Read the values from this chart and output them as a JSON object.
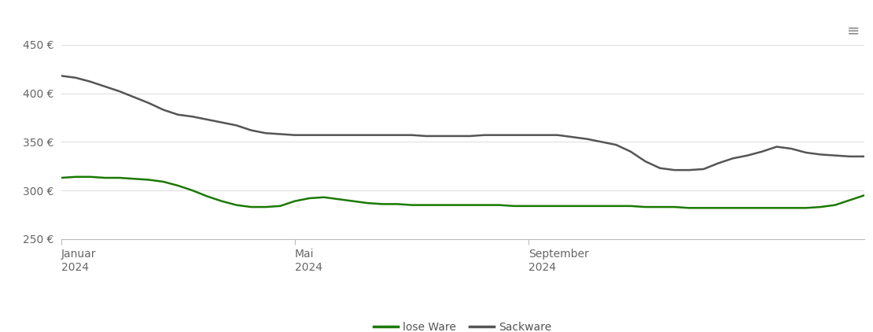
{
  "ylim": [
    250,
    455
  ],
  "yticks": [
    250,
    300,
    350,
    400,
    450
  ],
  "ytick_labels": [
    "250 €",
    "300 €",
    "350 €",
    "400 €",
    "450 €"
  ],
  "background_color": "#ffffff",
  "grid_color": "#dddddd",
  "lose_ware_color": "#1a7a00",
  "sackware_color": "#555555",
  "legend_labels": [
    "lose Ware",
    "Sackware"
  ],
  "lose_ware": [
    313,
    314,
    314,
    313,
    313,
    312,
    311,
    309,
    305,
    300,
    294,
    289,
    285,
    283,
    283,
    284,
    289,
    292,
    293,
    291,
    289,
    287,
    286,
    286,
    285,
    285,
    285,
    285,
    285,
    285,
    285,
    284,
    284,
    284,
    284,
    284,
    284,
    284,
    284,
    284,
    283,
    283,
    283,
    282,
    282,
    282,
    282,
    282,
    282,
    282,
    282,
    282,
    283,
    285,
    290,
    295
  ],
  "sackware": [
    418,
    416,
    412,
    407,
    402,
    396,
    390,
    383,
    378,
    376,
    373,
    370,
    367,
    362,
    359,
    358,
    357,
    357,
    357,
    357,
    357,
    357,
    357,
    357,
    357,
    356,
    356,
    356,
    356,
    357,
    357,
    357,
    357,
    357,
    357,
    355,
    353,
    350,
    347,
    340,
    330,
    323,
    321,
    321,
    322,
    328,
    333,
    336,
    340,
    345,
    343,
    339,
    337,
    336,
    335,
    335
  ],
  "x_tick_positions": [
    0,
    16,
    32
  ],
  "x_tick_labels": [
    "Januar\n2024",
    "Mai\n2024",
    "September\n2024"
  ],
  "xlim": [
    0,
    55
  ],
  "menu_icon": "≡",
  "line_width": 1.8
}
